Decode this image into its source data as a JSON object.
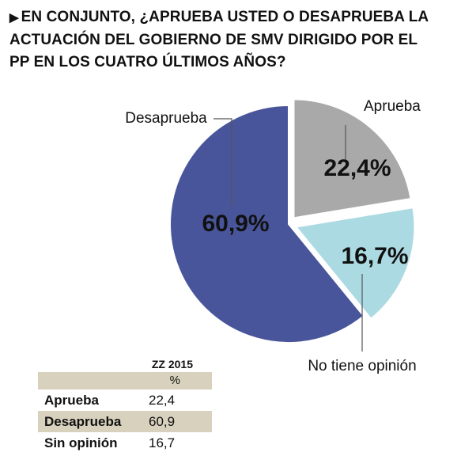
{
  "title": {
    "marker": "▶",
    "line1": "EN CONJUNTO, ¿APRUEBA USTED O DESAPRUEBA LA",
    "line2": "ACTUACIÓN DEL GOBIERNO DE SMV DIRIGIDO POR EL",
    "line3": "PP EN LOS CUATRO ÚLTIMOS AÑOS?"
  },
  "chart_data": {
    "type": "pie",
    "slices": [
      {
        "label": "Aprueba",
        "value": 22.4,
        "value_label": "22,4%",
        "color": "#a9a9a9",
        "exploded": true
      },
      {
        "label": "No tiene opinión",
        "value": 16.7,
        "value_label": "16,7%",
        "color": "#abdae3",
        "exploded": true
      },
      {
        "label": "Desaprueba",
        "value": 60.9,
        "value_label": "60,9%",
        "color": "#48559a",
        "exploded": false
      }
    ]
  },
  "summary_table": {
    "source_header": "ZZ 2015",
    "unit_header": "%",
    "rows": [
      {
        "label": "Aprueba",
        "value": "22,4"
      },
      {
        "label": "Desaprueba",
        "value": "60,9"
      },
      {
        "label": "Sin opinión",
        "value": "16,7"
      }
    ]
  }
}
